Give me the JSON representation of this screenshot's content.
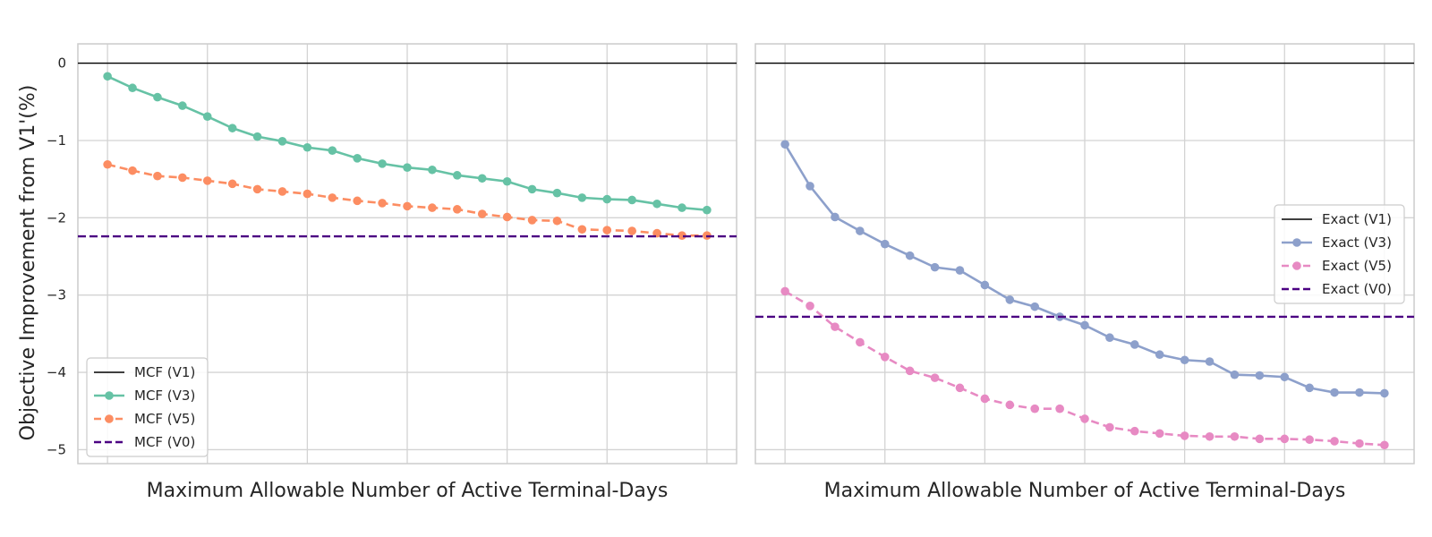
{
  "chart_data": [
    {
      "type": "line",
      "ylabel": "Objective Improvement from V1'(%)",
      "xlabel": "Maximum Allowable Number of Active Terminal-Days",
      "ylim": [
        -5.18,
        0.25
      ],
      "yticks": [
        0,
        -1,
        -2,
        -3,
        -4,
        -5
      ],
      "grid": true,
      "legend_position": "lower-left",
      "series": [
        {
          "name": "MCF (V1)",
          "color": "#000000",
          "style": "solid",
          "marker": false,
          "constant": 0
        },
        {
          "name": "MCF (V3)",
          "color": "#66c2a5",
          "style": "solid",
          "marker": true,
          "values": [
            -0.17,
            -0.32,
            -0.44,
            -0.55,
            -0.69,
            -0.84,
            -0.95,
            -1.01,
            -1.09,
            -1.13,
            -1.23,
            -1.3,
            -1.35,
            -1.38,
            -1.45,
            -1.49,
            -1.53,
            -1.63,
            -1.68,
            -1.74,
            -1.76,
            -1.77,
            -1.82,
            -1.87,
            -1.9
          ]
        },
        {
          "name": "MCF (V5)",
          "color": "#fc8d62",
          "style": "dashed",
          "marker": true,
          "values": [
            -1.31,
            -1.39,
            -1.46,
            -1.48,
            -1.52,
            -1.56,
            -1.63,
            -1.66,
            -1.69,
            -1.74,
            -1.78,
            -1.81,
            -1.85,
            -1.87,
            -1.89,
            -1.95,
            -1.99,
            -2.03,
            -2.04,
            -2.15,
            -2.16,
            -2.17,
            -2.2,
            -2.23,
            -2.23
          ]
        },
        {
          "name": "MCF (V0)",
          "color": "#4b0082",
          "style": "dashed",
          "marker": false,
          "constant": -2.24
        }
      ]
    },
    {
      "type": "line",
      "ylabel": "",
      "xlabel": "Maximum Allowable Number of Active Terminal-Days",
      "ylim": [
        -5.18,
        0.25
      ],
      "grid": true,
      "legend_position": "center-right",
      "series": [
        {
          "name": "Exact (V1)",
          "color": "#000000",
          "style": "solid",
          "marker": false,
          "constant": 0
        },
        {
          "name": "Exact (V3)",
          "color": "#8da0cb",
          "style": "solid",
          "marker": true,
          "values": [
            -1.05,
            -1.59,
            -1.99,
            -2.17,
            -2.34,
            -2.49,
            -2.64,
            -2.68,
            -2.87,
            -3.06,
            -3.15,
            -3.28,
            -3.39,
            -3.55,
            -3.64,
            -3.77,
            -3.84,
            -3.86,
            -4.03,
            -4.04,
            -4.06,
            -4.2,
            -4.26,
            -4.26,
            -4.27
          ]
        },
        {
          "name": "Exact (V5)",
          "color": "#e78ac3",
          "style": "dashed",
          "marker": true,
          "values": [
            -2.95,
            -3.14,
            -3.41,
            -3.61,
            -3.8,
            -3.98,
            -4.07,
            -4.2,
            -4.34,
            -4.42,
            -4.47,
            -4.47,
            -4.6,
            -4.71,
            -4.76,
            -4.79,
            -4.82,
            -4.83,
            -4.83,
            -4.86,
            -4.86,
            -4.87,
            -4.89,
            -4.92,
            -4.94
          ]
        },
        {
          "name": "Exact (V0)",
          "color": "#4b0082",
          "style": "dashed",
          "marker": false,
          "constant": -3.28
        }
      ]
    }
  ]
}
